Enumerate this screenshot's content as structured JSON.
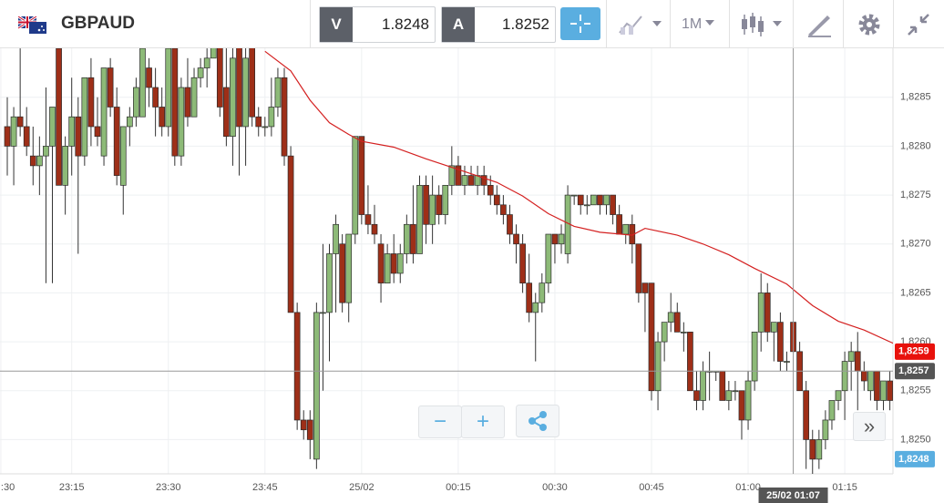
{
  "header": {
    "symbol": "GBPAUD",
    "bid": {
      "label": "V",
      "price": "1.8248"
    },
    "ask": {
      "label": "A",
      "price": "1.8252"
    },
    "timeframe": "1M"
  },
  "controls": {
    "zoom_out": "−",
    "zoom_in": "+",
    "scroll": "»"
  },
  "chart_data": {
    "type": "candlestick",
    "ylim": [
      1.82465,
      1.82901
    ],
    "yticks": [
      {
        "value": 1.825,
        "label": "1,8250"
      },
      {
        "value": 1.8255,
        "label": "1,8255"
      },
      {
        "value": 1.826,
        "label": "1,8260"
      },
      {
        "value": 1.8265,
        "label": "1,8265"
      },
      {
        "value": 1.827,
        "label": "1,8270"
      },
      {
        "value": 1.8275,
        "label": "1,8275"
      },
      {
        "value": 1.828,
        "label": "1,8280"
      },
      {
        "value": 1.8285,
        "label": "1,8285"
      }
    ],
    "xticks": [
      {
        "value": -1,
        "label": ":30"
      },
      {
        "value": 10,
        "label": "23:15"
      },
      {
        "value": 25,
        "label": "23:30"
      },
      {
        "value": 40,
        "label": "23:45"
      },
      {
        "value": 55,
        "label": "25/02"
      },
      {
        "value": 70,
        "label": "00:15"
      },
      {
        "value": 85,
        "label": "00:30"
      },
      {
        "value": 100,
        "label": "00:45"
      },
      {
        "value": 115,
        "label": "01:00"
      },
      {
        "value": 130,
        "label": "01:15"
      }
    ],
    "grid": true,
    "up_color": "#8dba78",
    "down_color": "#9e2f18",
    "candles": [
      [
        1.8282,
        1.8285,
        1.8277,
        1.828
      ],
      [
        1.828,
        1.8284,
        1.8276,
        1.8283
      ],
      [
        1.8283,
        1.829,
        1.8281,
        1.8282
      ],
      [
        1.8282,
        1.8284,
        1.8279,
        1.828
      ],
      [
        1.8279,
        1.8282,
        1.8276,
        1.8278
      ],
      [
        1.8278,
        1.8281,
        1.8275,
        1.8279
      ],
      [
        1.8279,
        1.8286,
        1.8266,
        1.828
      ],
      [
        1.828,
        1.8284,
        1.8266,
        1.8284
      ],
      [
        1.829,
        1.8291,
        1.8276,
        1.8276
      ],
      [
        1.8276,
        1.8281,
        1.8273,
        1.828
      ],
      [
        1.828,
        1.8287,
        1.8277,
        1.8283
      ],
      [
        1.8283,
        1.8285,
        1.8269,
        1.8279
      ],
      [
        1.8279,
        1.8287,
        1.8278,
        1.8287
      ],
      [
        1.8287,
        1.8289,
        1.828,
        1.8282
      ],
      [
        1.8282,
        1.8285,
        1.828,
        1.8281
      ],
      [
        1.8279,
        1.8288,
        1.8278,
        1.8288
      ],
      [
        1.8288,
        1.8289,
        1.8283,
        1.8284
      ],
      [
        1.8284,
        1.8286,
        1.8276,
        1.8277
      ],
      [
        1.8276,
        1.8282,
        1.8273,
        1.8282
      ],
      [
        1.8282,
        1.8284,
        1.828,
        1.8283
      ],
      [
        1.8283,
        1.8287,
        1.8282,
        1.8286
      ],
      [
        1.8283,
        1.829,
        1.8283,
        1.829
      ],
      [
        1.8288,
        1.8289,
        1.8284,
        1.8286
      ],
      [
        1.8286,
        1.8288,
        1.8281,
        1.8284
      ],
      [
        1.8284,
        1.8286,
        1.8281,
        1.8282
      ],
      [
        1.8282,
        1.8291,
        1.8281,
        1.829
      ],
      [
        1.829,
        1.8291,
        1.8278,
        1.8279
      ],
      [
        1.8279,
        1.8287,
        1.8278,
        1.8286
      ],
      [
        1.8286,
        1.8289,
        1.8282,
        1.8283
      ],
      [
        1.8283,
        1.8288,
        1.8283,
        1.8287
      ],
      [
        1.8287,
        1.8289,
        1.8286,
        1.8288
      ],
      [
        1.8288,
        1.829,
        1.8286,
        1.8289
      ],
      [
        1.8289,
        1.8291,
        1.8289,
        1.8291
      ],
      [
        1.8291,
        1.8291,
        1.8283,
        1.8284
      ],
      [
        1.8286,
        1.8291,
        1.828,
        1.8281
      ],
      [
        1.8281,
        1.8291,
        1.8278,
        1.8289
      ],
      [
        1.8291,
        1.8291,
        1.8277,
        1.8282
      ],
      [
        1.8282,
        1.8291,
        1.8278,
        1.8289
      ],
      [
        1.8291,
        1.8291,
        1.8282,
        1.8283
      ],
      [
        1.8283,
        1.8284,
        1.8281,
        1.8282
      ],
      [
        1.8282,
        1.8283,
        1.8281,
        1.8282
      ],
      [
        1.8282,
        1.8287,
        1.8281,
        1.8284
      ],
      [
        1.8284,
        1.8288,
        1.8283,
        1.8287
      ],
      [
        1.8287,
        1.8288,
        1.8278,
        1.8279
      ],
      [
        1.8279,
        1.828,
        1.8263,
        1.8263
      ],
      [
        1.8263,
        1.8264,
        1.8251,
        1.8252
      ],
      [
        1.8252,
        1.8253,
        1.825,
        1.8251
      ],
      [
        1.8252,
        1.8253,
        1.8248,
        1.825
      ],
      [
        1.8248,
        1.8264,
        1.8247,
        1.8263
      ],
      [
        1.8263,
        1.827,
        1.8255,
        1.8263
      ],
      [
        1.8263,
        1.827,
        1.8258,
        1.8269
      ],
      [
        1.8269,
        1.8273,
        1.8263,
        1.8272
      ],
      [
        1.827,
        1.8271,
        1.8263,
        1.8264
      ],
      [
        1.8264,
        1.8271,
        1.8262,
        1.8271
      ],
      [
        1.8271,
        1.8281,
        1.827,
        1.8281
      ],
      [
        1.8281,
        1.8281,
        1.8272,
        1.8273
      ],
      [
        1.8273,
        1.8276,
        1.8271,
        1.8272
      ],
      [
        1.8272,
        1.8274,
        1.827,
        1.8271
      ],
      [
        1.827,
        1.8271,
        1.8264,
        1.8266
      ],
      [
        1.8266,
        1.827,
        1.8266,
        1.8269
      ],
      [
        1.8269,
        1.8271,
        1.8266,
        1.8267
      ],
      [
        1.8267,
        1.827,
        1.8266,
        1.8269
      ],
      [
        1.8269,
        1.8273,
        1.8268,
        1.8272
      ],
      [
        1.8272,
        1.8276,
        1.8268,
        1.8269
      ],
      [
        1.8269,
        1.8277,
        1.8269,
        1.8276
      ],
      [
        1.8276,
        1.8277,
        1.827,
        1.8272
      ],
      [
        1.8272,
        1.8277,
        1.827,
        1.8275
      ],
      [
        1.8275,
        1.8276,
        1.8272,
        1.8273
      ],
      [
        1.8273,
        1.8276,
        1.8272,
        1.8276
      ],
      [
        1.8276,
        1.828,
        1.8275,
        1.8278
      ],
      [
        1.8278,
        1.8279,
        1.8276,
        1.8276
      ],
      [
        1.8276,
        1.8278,
        1.8275,
        1.8277
      ],
      [
        1.8277,
        1.8278,
        1.8276,
        1.8276
      ],
      [
        1.8276,
        1.8278,
        1.8275,
        1.8277
      ],
      [
        1.8277,
        1.8278,
        1.8275,
        1.8276
      ],
      [
        1.8276,
        1.8277,
        1.8274,
        1.8275
      ],
      [
        1.8275,
        1.8276,
        1.8273,
        1.8274
      ],
      [
        1.8274,
        1.8275,
        1.8272,
        1.8273
      ],
      [
        1.8273,
        1.8274,
        1.827,
        1.8271
      ],
      [
        1.8271,
        1.8272,
        1.8268,
        1.827
      ],
      [
        1.827,
        1.8271,
        1.8265,
        1.8266
      ],
      [
        1.8266,
        1.8269,
        1.8262,
        1.8263
      ],
      [
        1.8263,
        1.8265,
        1.8258,
        1.8264
      ],
      [
        1.8264,
        1.8267,
        1.8263,
        1.8266
      ],
      [
        1.8266,
        1.8271,
        1.8265,
        1.8271
      ],
      [
        1.8271,
        1.8271,
        1.8268,
        1.827
      ],
      [
        1.827,
        1.8272,
        1.8269,
        1.8271
      ],
      [
        1.8269,
        1.8276,
        1.8268,
        1.8275
      ],
      [
        1.8275,
        1.8275,
        1.8274,
        1.8275
      ],
      [
        1.8275,
        1.8275,
        1.8273,
        1.8274
      ],
      [
        1.8274,
        1.8275,
        1.8273,
        1.8274
      ],
      [
        1.8274,
        1.8275,
        1.8274,
        1.8275
      ],
      [
        1.8275,
        1.8275,
        1.8273,
        1.8274
      ],
      [
        1.8274,
        1.8275,
        1.8273,
        1.8275
      ],
      [
        1.8275,
        1.8275,
        1.8272,
        1.8273
      ],
      [
        1.8273,
        1.8274,
        1.8271,
        1.8271
      ],
      [
        1.8271,
        1.8272,
        1.827,
        1.8272
      ],
      [
        1.8272,
        1.8273,
        1.8268,
        1.827
      ],
      [
        1.827,
        1.827,
        1.8264,
        1.8265
      ],
      [
        1.8266,
        1.8266,
        1.8261,
        1.8265
      ],
      [
        1.8266,
        1.8266,
        1.8254,
        1.8255
      ],
      [
        1.8255,
        1.8261,
        1.8253,
        1.826
      ],
      [
        1.826,
        1.8262,
        1.8258,
        1.8262
      ],
      [
        1.8262,
        1.8265,
        1.8261,
        1.8263
      ],
      [
        1.8263,
        1.8264,
        1.8261,
        1.8261
      ],
      [
        1.8261,
        1.8262,
        1.8259,
        1.8261
      ],
      [
        1.8261,
        1.8261,
        1.8255,
        1.8255
      ],
      [
        1.8255,
        1.8257,
        1.8253,
        1.8254
      ],
      [
        1.8254,
        1.8258,
        1.8253,
        1.8257
      ],
      [
        1.8257,
        1.8259,
        1.8254,
        1.8257
      ],
      [
        1.8257,
        1.8257,
        1.8256,
        1.8257
      ],
      [
        1.8257,
        1.8257,
        1.8254,
        1.8254
      ],
      [
        1.8254,
        1.8256,
        1.8253,
        1.8255
      ],
      [
        1.8255,
        1.8256,
        1.8254,
        1.8255
      ],
      [
        1.8255,
        1.8255,
        1.825,
        1.8252
      ],
      [
        1.8252,
        1.8257,
        1.8251,
        1.8256
      ],
      [
        1.8256,
        1.8261,
        1.8255,
        1.8261
      ],
      [
        1.8261,
        1.8267,
        1.8259,
        1.8265
      ],
      [
        1.8265,
        1.8266,
        1.826,
        1.8261
      ],
      [
        1.8261,
        1.8262,
        1.8258,
        1.8262
      ],
      [
        1.8262,
        1.8263,
        1.8257,
        1.8258
      ],
      [
        1.8258,
        1.8259,
        1.8257,
        1.8258
      ],
      [
        1.8262,
        1.8262,
        1.8257,
        1.8259
      ],
      [
        1.8259,
        1.826,
        1.8255,
        1.8255
      ],
      [
        1.8255,
        1.8256,
        1.8247,
        1.825
      ],
      [
        1.825,
        1.8251,
        1.8246,
        1.8248
      ],
      [
        1.8248,
        1.8251,
        1.8247,
        1.825
      ],
      [
        1.825,
        1.8253,
        1.8249,
        1.8252
      ],
      [
        1.8252,
        1.8254,
        1.8251,
        1.8254
      ],
      [
        1.8254,
        1.8255,
        1.8253,
        1.8255
      ],
      [
        1.8255,
        1.8259,
        1.8252,
        1.8258
      ],
      [
        1.8258,
        1.826,
        1.8255,
        1.8259
      ],
      [
        1.8259,
        1.8261,
        1.8253,
        1.8257
      ],
      [
        1.8257,
        1.8258,
        1.8255,
        1.8256
      ],
      [
        1.8255,
        1.8257,
        1.8254,
        1.8257
      ],
      [
        1.8257,
        1.8257,
        1.8253,
        1.8254
      ],
      [
        1.8254,
        1.8256,
        1.8253,
        1.8256
      ],
      [
        1.8256,
        1.8257,
        1.8253,
        1.8254
      ]
    ],
    "moving_average": {
      "color": "#d42020",
      "x": [
        40,
        44,
        47,
        50,
        53,
        55,
        60,
        65,
        71,
        76,
        80,
        84,
        88,
        92,
        97,
        99,
        104,
        108,
        112,
        116,
        121,
        125,
        129,
        133,
        138
      ],
      "values": [
        1.82897,
        1.82877,
        1.82847,
        1.82824,
        1.82812,
        1.82805,
        1.82799,
        1.82787,
        1.82774,
        1.82763,
        1.82749,
        1.82731,
        1.82718,
        1.82712,
        1.82709,
        1.82716,
        1.82709,
        1.827,
        1.82689,
        1.82675,
        1.82659,
        1.82637,
        1.82621,
        1.82612,
        1.82597
      ]
    },
    "crosshair": {
      "x": 122,
      "label": "25/02 01:07",
      "y": 1.8257,
      "y_label": "1,8257"
    },
    "price_labels": [
      {
        "value": 1.8259,
        "label": "1,8259",
        "color": "#e8120c"
      },
      {
        "value": 1.8248,
        "label": "1,8248",
        "color": "#5aaee0"
      }
    ]
  }
}
